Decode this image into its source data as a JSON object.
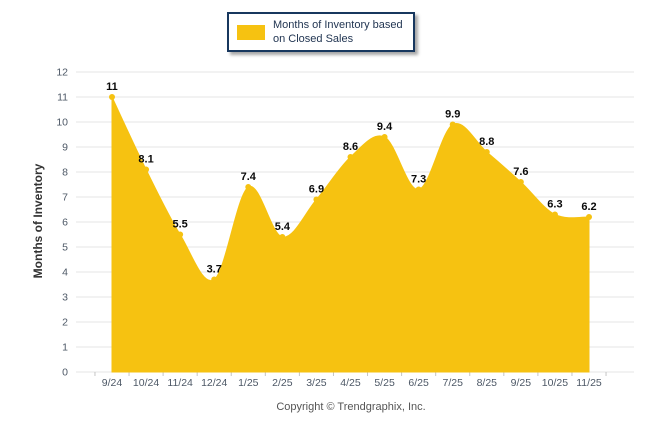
{
  "legend": {
    "line1": "Months of Inventory based",
    "line2": "on Closed Sales"
  },
  "ylabel": "Months of Inventory",
  "footer": {
    "copyright": "Copyright © Trendgraphix, Inc."
  },
  "colors": {
    "series": "#F6C211",
    "grid": "#E5E5E5",
    "tick": "#C4C4C4",
    "axis_text": "#4D5866",
    "point_label_text": "#0A0A0A",
    "legend_border": "#17375E",
    "legend_text": "#1F3350",
    "background": "#FFFFFF"
  },
  "chart_data": {
    "type": "area",
    "categories": [
      "9/24",
      "10/24",
      "11/24",
      "12/24",
      "1/25",
      "2/25",
      "3/25",
      "4/25",
      "5/25",
      "6/25",
      "7/25",
      "8/25",
      "9/25",
      "10/25",
      "11/25"
    ],
    "series": [
      {
        "name": "Months of Inventory based on Closed Sales",
        "values": [
          11,
          8.1,
          5.5,
          3.7,
          7.4,
          5.4,
          6.9,
          8.6,
          9.4,
          7.3,
          9.9,
          8.8,
          7.6,
          6.3,
          6.2
        ]
      }
    ],
    "point_labels": [
      "11",
      "8.1",
      "5.5",
      "3.7",
      "7.4",
      "5.4",
      "6.9",
      "8.6",
      "9.4",
      "7.3",
      "9.9",
      "8.8",
      "7.6",
      "6.3",
      "6.2"
    ],
    "title": "",
    "xlabel": "",
    "ylabel": "Months of Inventory",
    "ylim": [
      0,
      12
    ],
    "ytick_step": 1,
    "grid": true,
    "legend_position": "top-center",
    "smooth": true
  }
}
